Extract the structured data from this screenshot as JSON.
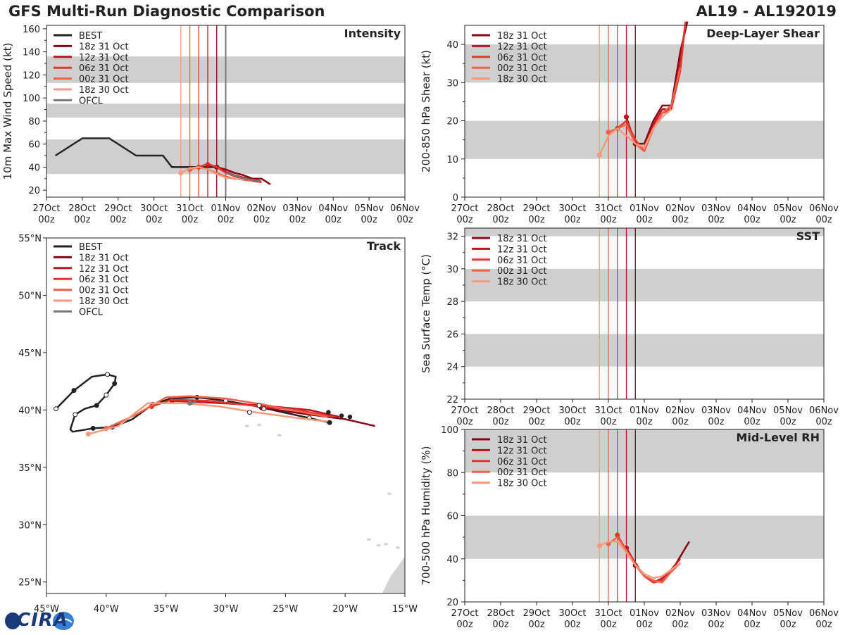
{
  "header": {
    "title_left": "GFS Multi-Run Diagnostic Comparison",
    "title_right": "AL19 - AL192019"
  },
  "logo": {
    "text": "CIRA",
    "colors": [
      "#1b3a7a",
      "#3a7fd0"
    ]
  },
  "colors": {
    "BEST": "#222222",
    "OFCL": "#777777",
    "18z 31 Oct": "#8b0015",
    "12z 31 Oct": "#c4101c",
    "06z 31 Oct": "#e2362b",
    "00z 31 Oct": "#f1614a",
    "18z 30 Oct": "#f79a7c",
    "band": "#cfcfcf",
    "land": "#d3d3d3"
  },
  "time_axis": {
    "ticks": [
      "27Oct\n00z",
      "28Oct\n00z",
      "29Oct\n00z",
      "30Oct\n00z",
      "31Oct\n00z",
      "01Nov\n00z",
      "02Nov\n00z",
      "03Nov\n00z",
      "04Nov\n00z",
      "05Nov\n00z",
      "06Nov\n00z"
    ],
    "init_times_days": [
      3.75,
      4.0,
      4.25,
      4.5,
      4.75
    ]
  },
  "chart_data": [
    {
      "id": "intensity",
      "type": "line",
      "title": "Intensity",
      "ylabel": "10m Max Wind Speed (kt)",
      "xlim": [
        0,
        10
      ],
      "ylim": [
        14,
        163
      ],
      "yticks": [
        20,
        40,
        60,
        80,
        100,
        120,
        140,
        160
      ],
      "bands": [
        [
          34,
          64
        ],
        [
          83,
          95
        ],
        [
          113,
          136
        ]
      ],
      "legend": [
        "BEST",
        "18z 31 Oct",
        "12z 31 Oct",
        "06z 31 Oct",
        "00z 31 Oct",
        "18z 30 Oct",
        "OFCL"
      ],
      "ofcl_init": 5.0,
      "series": [
        {
          "name": "BEST",
          "x": [
            0.25,
            1.0,
            1.75,
            2.5,
            3.25,
            3.5,
            4.0,
            4.25,
            4.5,
            4.75
          ],
          "y": [
            50,
            65,
            65,
            50,
            50,
            40,
            40,
            40,
            40,
            40
          ]
        },
        {
          "name": "18z 31 Oct",
          "marker_x": 4.75,
          "x": [
            4.75,
            5.0,
            5.25,
            5.5,
            5.75,
            6.0,
            6.25
          ],
          "y": [
            40,
            38,
            35,
            33,
            30,
            30,
            25
          ]
        },
        {
          "name": "12z 31 Oct",
          "marker_x": 4.5,
          "x": [
            4.5,
            4.75,
            5.0,
            5.25,
            5.5,
            5.75,
            6.0
          ],
          "y": [
            42,
            40,
            36,
            33,
            31,
            29,
            27
          ]
        },
        {
          "name": "06z 31 Oct",
          "marker_x": 4.25,
          "x": [
            4.25,
            4.5,
            4.75,
            5.0,
            5.25,
            5.5,
            5.75,
            6.0
          ],
          "y": [
            40,
            43,
            40,
            35,
            32,
            30,
            28,
            27
          ]
        },
        {
          "name": "00z 31 Oct",
          "marker_x": 4.0,
          "x": [
            4.0,
            4.25,
            4.5,
            4.75,
            5.0,
            5.25,
            5.5,
            5.75
          ],
          "y": [
            38,
            40,
            38,
            35,
            32,
            30,
            29,
            28
          ]
        },
        {
          "name": "18z 30 Oct",
          "marker_x": 3.75,
          "x": [
            3.75,
            4.0,
            4.25,
            4.5,
            4.75,
            5.0,
            5.25,
            5.5
          ],
          "y": [
            35,
            39,
            40,
            38,
            34,
            31,
            30,
            29
          ]
        },
        {
          "name": "OFCL",
          "x": [
            5.0,
            5.25,
            5.5,
            5.75,
            6.0
          ],
          "y": [
            35,
            33,
            30,
            29,
            28
          ]
        }
      ]
    },
    {
      "id": "shear",
      "type": "line",
      "title": "Deep-Layer Shear",
      "ylabel": "200-850 hPa Shear (kt)",
      "xlim": [
        0,
        10
      ],
      "ylim": [
        0,
        45
      ],
      "yticks": [
        0,
        10,
        20,
        30,
        40
      ],
      "bands": [
        [
          10,
          20
        ],
        [
          30,
          40
        ]
      ],
      "legend": [
        "18z 31 Oct",
        "12z 31 Oct",
        "06z 31 Oct",
        "00z 31 Oct",
        "18z 30 Oct"
      ],
      "series": [
        {
          "name": "18z 31 Oct",
          "marker_x": 4.75,
          "x": [
            4.75,
            5.0,
            5.25,
            5.5,
            5.75,
            6.0,
            6.2
          ],
          "y": [
            14,
            14,
            20,
            24,
            24,
            38,
            46
          ]
        },
        {
          "name": "12z 31 Oct",
          "marker_x": 4.5,
          "x": [
            4.5,
            4.75,
            5.0,
            5.25,
            5.5,
            5.75,
            6.0,
            6.15
          ],
          "y": [
            21,
            14,
            13,
            19,
            23,
            23,
            35,
            46
          ]
        },
        {
          "name": "06z 31 Oct",
          "marker_x": 4.25,
          "x": [
            4.25,
            4.5,
            4.75,
            5.0,
            5.25,
            5.5,
            5.75,
            6.0,
            6.15
          ],
          "y": [
            18,
            20,
            15,
            12,
            18,
            22,
            23,
            33,
            46
          ]
        },
        {
          "name": "00z 31 Oct",
          "marker_x": 4.0,
          "x": [
            4.0,
            4.25,
            4.5,
            4.75,
            5.0,
            5.25,
            5.5,
            5.75,
            6.0
          ],
          "y": [
            17,
            18,
            19,
            14,
            12,
            18,
            22,
            24,
            34
          ]
        },
        {
          "name": "18z 30 Oct",
          "marker_x": 3.75,
          "x": [
            3.75,
            4.0,
            4.25,
            4.5,
            4.75,
            5.0,
            5.25,
            5.5,
            5.75
          ],
          "y": [
            11,
            16,
            18,
            16,
            14,
            13,
            18,
            21,
            23
          ]
        }
      ]
    },
    {
      "id": "sst",
      "type": "line",
      "title": "SST",
      "ylabel": "Sea Surface Temp (°C)",
      "xlim": [
        0,
        10
      ],
      "ylim": [
        22,
        32.5
      ],
      "yticks": [
        22,
        24,
        26,
        28,
        30,
        32
      ],
      "bands": [
        [
          24,
          26
        ],
        [
          28,
          30
        ],
        [
          32,
          32.5
        ]
      ],
      "legend": [
        "18z 31 Oct",
        "12z 31 Oct",
        "06z 31 Oct",
        "00z 31 Oct",
        "18z 30 Oct"
      ],
      "series": []
    },
    {
      "id": "rh",
      "type": "line",
      "title": "Mid-Level RH",
      "ylabel": "700-500 hPa Humidity (%)",
      "xlim": [
        0,
        10
      ],
      "ylim": [
        20,
        100
      ],
      "yticks": [
        20,
        40,
        60,
        80,
        100
      ],
      "bands": [
        [
          40,
          60
        ],
        [
          80,
          100
        ]
      ],
      "legend": [
        "18z 31 Oct",
        "12z 31 Oct",
        "06z 31 Oct",
        "00z 31 Oct",
        "18z 30 Oct"
      ],
      "series": [
        {
          "name": "18z 31 Oct",
          "marker_x": 4.75,
          "x": [
            4.75,
            5.0,
            5.25,
            5.5,
            5.75,
            6.0,
            6.25
          ],
          "y": [
            37,
            32,
            29,
            30,
            34,
            41,
            48
          ]
        },
        {
          "name": "12z 31 Oct",
          "marker_x": 4.5,
          "x": [
            4.5,
            4.75,
            5.0,
            5.25,
            5.5,
            5.75,
            6.0
          ],
          "y": [
            45,
            38,
            32,
            29,
            31,
            35,
            40
          ]
        },
        {
          "name": "06z 31 Oct",
          "marker_x": 4.25,
          "x": [
            4.25,
            4.5,
            4.75,
            5.0,
            5.25,
            5.5,
            5.75,
            6.0
          ],
          "y": [
            51,
            44,
            38,
            32,
            29,
            30,
            34,
            38
          ]
        },
        {
          "name": "00z 31 Oct",
          "marker_x": 4.0,
          "x": [
            4.0,
            4.25,
            4.5,
            4.75,
            5.0,
            5.25,
            5.5,
            5.75,
            6.0
          ],
          "y": [
            47,
            50,
            44,
            37,
            32,
            30,
            29,
            34,
            38
          ]
        },
        {
          "name": "18z 30 Oct",
          "marker_x": 3.75,
          "x": [
            3.75,
            4.0,
            4.25,
            4.5,
            4.75,
            5.0,
            5.25,
            5.5,
            5.75,
            6.0
          ],
          "y": [
            46,
            48,
            48,
            43,
            37,
            33,
            31,
            32,
            35,
            38
          ]
        }
      ]
    },
    {
      "id": "track",
      "type": "scatter",
      "title": "Track",
      "xlim": [
        -45,
        -15
      ],
      "ylim": [
        24,
        55
      ],
      "xticks": [
        -45,
        -40,
        -35,
        -30,
        -25,
        -20,
        -15
      ],
      "xticklabels": [
        "45°W",
        "40°W",
        "35°W",
        "30°W",
        "25°W",
        "20°W",
        "15°W"
      ],
      "yticks": [
        25,
        30,
        35,
        40,
        45,
        50,
        55
      ],
      "yticklabels": [
        "25°N",
        "30°N",
        "35°N",
        "40°N",
        "45°N",
        "50°N",
        "55°N"
      ],
      "legend": [
        "BEST",
        "18z 31 Oct",
        "12z 31 Oct",
        "06z 31 Oct",
        "00z 31 Oct",
        "18z 30 Oct",
        "OFCL"
      ],
      "series": [
        {
          "name": "BEST",
          "lon": [
            -44.2,
            -42.7,
            -41.2,
            -39.9,
            -39.2,
            -39.3,
            -40.0,
            -40.8,
            -41.8,
            -42.6,
            -43.0,
            -42.8,
            -41.1,
            -39.5,
            -37.8,
            -36.1,
            -34.6,
            -32.4,
            -30.0,
            -27.8,
            -25.2,
            -23.0,
            -21.3
          ],
          "lat": [
            40.1,
            41.7,
            42.9,
            43.1,
            42.9,
            42.3,
            41.3,
            40.4,
            40.1,
            39.6,
            38.3,
            38.1,
            38.4,
            38.5,
            39.2,
            40.5,
            41.0,
            41.1,
            40.8,
            40.4,
            39.8,
            39.3,
            38.9
          ],
          "filled": [
            false,
            true,
            false,
            false,
            false,
            true,
            false,
            true,
            false,
            false,
            false,
            false,
            true,
            true,
            false,
            false,
            false,
            true,
            false,
            false,
            false,
            false,
            true
          ]
        },
        {
          "name": "18z 31 Oct",
          "lon": [
            -27.0,
            -23.0,
            -20.0,
            -17.5
          ],
          "lat": [
            40.2,
            39.6,
            39.2,
            38.6
          ]
        },
        {
          "name": "12z 31 Oct",
          "lon": [
            -34.5,
            -30.5,
            -27.0,
            -23.0,
            -20.5
          ],
          "lat": [
            40.8,
            40.6,
            40.4,
            40.0,
            39.4
          ]
        },
        {
          "name": "06z 31 Oct",
          "lon": [
            -36.2,
            -34.5,
            -31.5,
            -28.0,
            -24.0,
            -21.0
          ],
          "lat": [
            40.3,
            40.9,
            40.8,
            40.4,
            40.0,
            39.4
          ]
        },
        {
          "name": "00z 31 Oct",
          "lon": [
            -40.0,
            -37.5,
            -35.0,
            -33.0,
            -30.0,
            -27.0,
            -24.0,
            -21.5
          ],
          "lat": [
            38.4,
            39.6,
            41.1,
            41.2,
            41.0,
            40.5,
            39.9,
            39.4
          ]
        },
        {
          "name": "18z 30 Oct",
          "lon": [
            -41.5,
            -39.0,
            -36.5,
            -33.5,
            -30.5,
            -27.5,
            -24.0,
            -21.5
          ],
          "lat": [
            37.9,
            38.6,
            40.6,
            40.6,
            40.3,
            39.8,
            39.3,
            39.0
          ]
        },
        {
          "name": "OFCL",
          "lon": [
            -33.0,
            -32.5
          ],
          "lat": [
            40.6,
            40.7
          ]
        }
      ]
    }
  ]
}
